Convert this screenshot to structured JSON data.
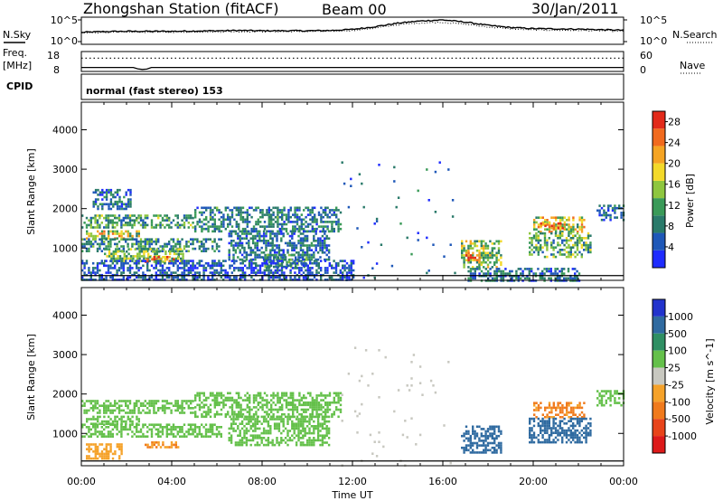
{
  "header": {
    "station_title": "Zhongshan Station (fitACF)",
    "beam": "Beam 00",
    "date": "30/Jan/2011",
    "mode": "normal (fast stereo) 153"
  },
  "side_labels": {
    "nsky": "N.Sky",
    "freq_line1": "Freq.",
    "freq_line2": "[MHz]",
    "cpid": "CPID",
    "nsearch": "N.Search",
    "nave": "Nave"
  },
  "chart_data": [
    {
      "type": "line",
      "panel": "noise",
      "series": [
        {
          "name": "N.Sky",
          "x": [
            0,
            1,
            2,
            3,
            4,
            5,
            6,
            7,
            8,
            9,
            10,
            11,
            12,
            13,
            14,
            15,
            16,
            17,
            18,
            19,
            20,
            21,
            22,
            23,
            24
          ],
          "y": [
            2.2,
            2.35,
            2.4,
            2.4,
            2.4,
            2.45,
            2.5,
            2.55,
            2.5,
            2.5,
            2.5,
            2.55,
            2.75,
            3.25,
            3.9,
            4.3,
            4.5,
            4.1,
            3.5,
            3.1,
            2.9,
            2.85,
            2.8,
            2.7,
            2.6
          ]
        },
        {
          "name": "N.Search",
          "x": [
            0,
            1,
            2,
            3,
            4,
            5,
            6,
            7,
            8,
            9,
            10,
            11,
            12,
            13,
            14,
            15,
            16,
            17,
            18,
            19,
            20,
            21,
            22,
            23,
            24
          ],
          "y": [
            2.1,
            2.2,
            2.25,
            2.25,
            2.25,
            2.3,
            2.3,
            2.35,
            2.35,
            2.35,
            2.35,
            2.4,
            2.55,
            3.0,
            3.6,
            3.95,
            4.05,
            3.7,
            3.2,
            2.85,
            2.65,
            2.6,
            2.55,
            2.5,
            2.4
          ]
        }
      ],
      "left_ticks": [
        "10^5",
        "10^0"
      ],
      "right_ticks": [
        "10^5",
        "10^0"
      ],
      "ylim": [
        0,
        5
      ]
    },
    {
      "type": "line",
      "panel": "frequency",
      "left_ticks": [
        "18",
        "8"
      ],
      "right_ticks": [
        "60",
        "0"
      ],
      "series": [
        {
          "name": "Freq.",
          "x": [
            0,
            2.3,
            2.5,
            2.7,
            2.9,
            3.1,
            24
          ],
          "y": [
            10,
            10,
            9.3,
            9.0,
            9.2,
            10,
            10
          ]
        },
        {
          "name": "Nave",
          "x": [
            0,
            24
          ],
          "y": [
            40,
            40
          ]
        }
      ]
    },
    {
      "type": "heatmap",
      "panel": "power",
      "xlabel": "",
      "ylabel": "Slant Range [km]",
      "xlim": [
        0,
        24
      ],
      "ylim": [
        180,
        4700
      ],
      "y_ticks": [
        1000,
        2000,
        3000,
        4000
      ],
      "colorbar": {
        "label": "Power [dB]",
        "ticks": [
          4,
          8,
          12,
          16,
          20,
          24,
          28
        ],
        "range": [
          0,
          30
        ],
        "colors": [
          "#1f2cff",
          "#1f58b8",
          "#2a7a6a",
          "#3a9a58",
          "#8ec63f",
          "#f3d92a",
          "#f5a423",
          "#f16a1e",
          "#e22a1a"
        ]
      },
      "regions": [
        {
          "t0": 0.0,
          "t1": 4.9,
          "r0": 1500,
          "r1": 1850,
          "level": 11
        },
        {
          "t0": 0.2,
          "t1": 2.6,
          "r0": 1250,
          "r1": 1450,
          "level": 17
        },
        {
          "t0": 0.0,
          "t1": 6.2,
          "r0": 900,
          "r1": 1250,
          "level": 9
        },
        {
          "t0": 1.0,
          "t1": 4.5,
          "r0": 700,
          "r1": 1000,
          "level": 13
        },
        {
          "t0": 2.8,
          "t1": 4.3,
          "r0": 650,
          "r1": 800,
          "level": 21
        },
        {
          "t0": 5.0,
          "t1": 11.5,
          "r0": 1450,
          "r1": 2050,
          "level": 8
        },
        {
          "t0": 6.5,
          "t1": 11.0,
          "r0": 700,
          "r1": 1450,
          "level": 7
        },
        {
          "t0": 8.0,
          "t1": 10.0,
          "r0": 550,
          "r1": 850,
          "level": 10
        },
        {
          "t0": 0.5,
          "t1": 2.2,
          "r0": 2000,
          "r1": 2500,
          "level": 7
        },
        {
          "t0": 0.0,
          "t1": 12.0,
          "r0": 190,
          "r1": 700,
          "level": 5
        },
        {
          "t0": 16.8,
          "t1": 18.6,
          "r0": 500,
          "r1": 1200,
          "level": 15
        },
        {
          "t0": 17.0,
          "t1": 17.6,
          "r0": 700,
          "r1": 900,
          "level": 25
        },
        {
          "t0": 20.0,
          "t1": 22.3,
          "r0": 1400,
          "r1": 1800,
          "level": 18
        },
        {
          "t0": 20.3,
          "t1": 21.3,
          "r0": 1500,
          "r1": 1650,
          "level": 24
        },
        {
          "t0": 19.8,
          "t1": 22.5,
          "r0": 800,
          "r1": 1400,
          "level": 12
        },
        {
          "t0": 22.8,
          "t1": 24.0,
          "r0": 1700,
          "r1": 2100,
          "level": 8
        },
        {
          "t0": 17.0,
          "t1": 22.0,
          "r0": 190,
          "r1": 500,
          "level": 7
        },
        {
          "t0": 11.5,
          "t1": 16.5,
          "r0": 200,
          "r1": 3200,
          "level": 6
        }
      ]
    },
    {
      "type": "heatmap",
      "panel": "velocity",
      "xlabel": "Time UT",
      "ylabel": "Slant Range [km]",
      "x_ticks": [
        "00:00",
        "04:00",
        "08:00",
        "12:00",
        "16:00",
        "20:00",
        "00:00"
      ],
      "xlim": [
        0,
        24
      ],
      "ylim": [
        180,
        4700
      ],
      "y_ticks": [
        1000,
        2000,
        3000,
        4000
      ],
      "colorbar": {
        "label": "Velocity [m s^-1]",
        "ticks": [
          "1000",
          "500",
          "100",
          "25",
          "-25",
          "-100",
          "-500",
          "-1000"
        ],
        "range": [
          -1000,
          1000
        ],
        "colors": [
          "#2233cc",
          "#2f6aa0",
          "#2f8f63",
          "#64c04a",
          "#c8c8c0",
          "#f5a22a",
          "#f07a1c",
          "#e8441a",
          "#dd1a1a"
        ]
      },
      "regions": [
        {
          "t0": 0.0,
          "t1": 4.9,
          "r0": 1500,
          "r1": 1850,
          "level": 0
        },
        {
          "t0": 0.2,
          "t1": 2.6,
          "r0": 1250,
          "r1": 1450,
          "level": 0
        },
        {
          "t0": 0.0,
          "t1": 6.2,
          "r0": 900,
          "r1": 1250,
          "level": 10
        },
        {
          "t0": 2.8,
          "t1": 4.3,
          "r0": 650,
          "r1": 800,
          "level": -250
        },
        {
          "t0": 0.2,
          "t1": 1.8,
          "r0": 350,
          "r1": 750,
          "level": -150
        },
        {
          "t0": 5.0,
          "t1": 11.5,
          "r0": 1450,
          "r1": 2050,
          "level": -5
        },
        {
          "t0": 6.5,
          "t1": 11.0,
          "r0": 700,
          "r1": 1450,
          "level": 5
        },
        {
          "t0": 16.8,
          "t1": 18.6,
          "r0": 500,
          "r1": 1200,
          "level": 200
        },
        {
          "t0": 20.0,
          "t1": 22.3,
          "r0": 1400,
          "r1": 1800,
          "level": -300
        },
        {
          "t0": 19.8,
          "t1": 22.5,
          "r0": 800,
          "r1": 1400,
          "level": 150
        },
        {
          "t0": 22.8,
          "t1": 24.0,
          "r0": 1700,
          "r1": 2100,
          "level": 0
        },
        {
          "t0": 11.5,
          "t1": 16.5,
          "r0": 200,
          "r1": 3200,
          "level": -60
        }
      ]
    }
  ]
}
